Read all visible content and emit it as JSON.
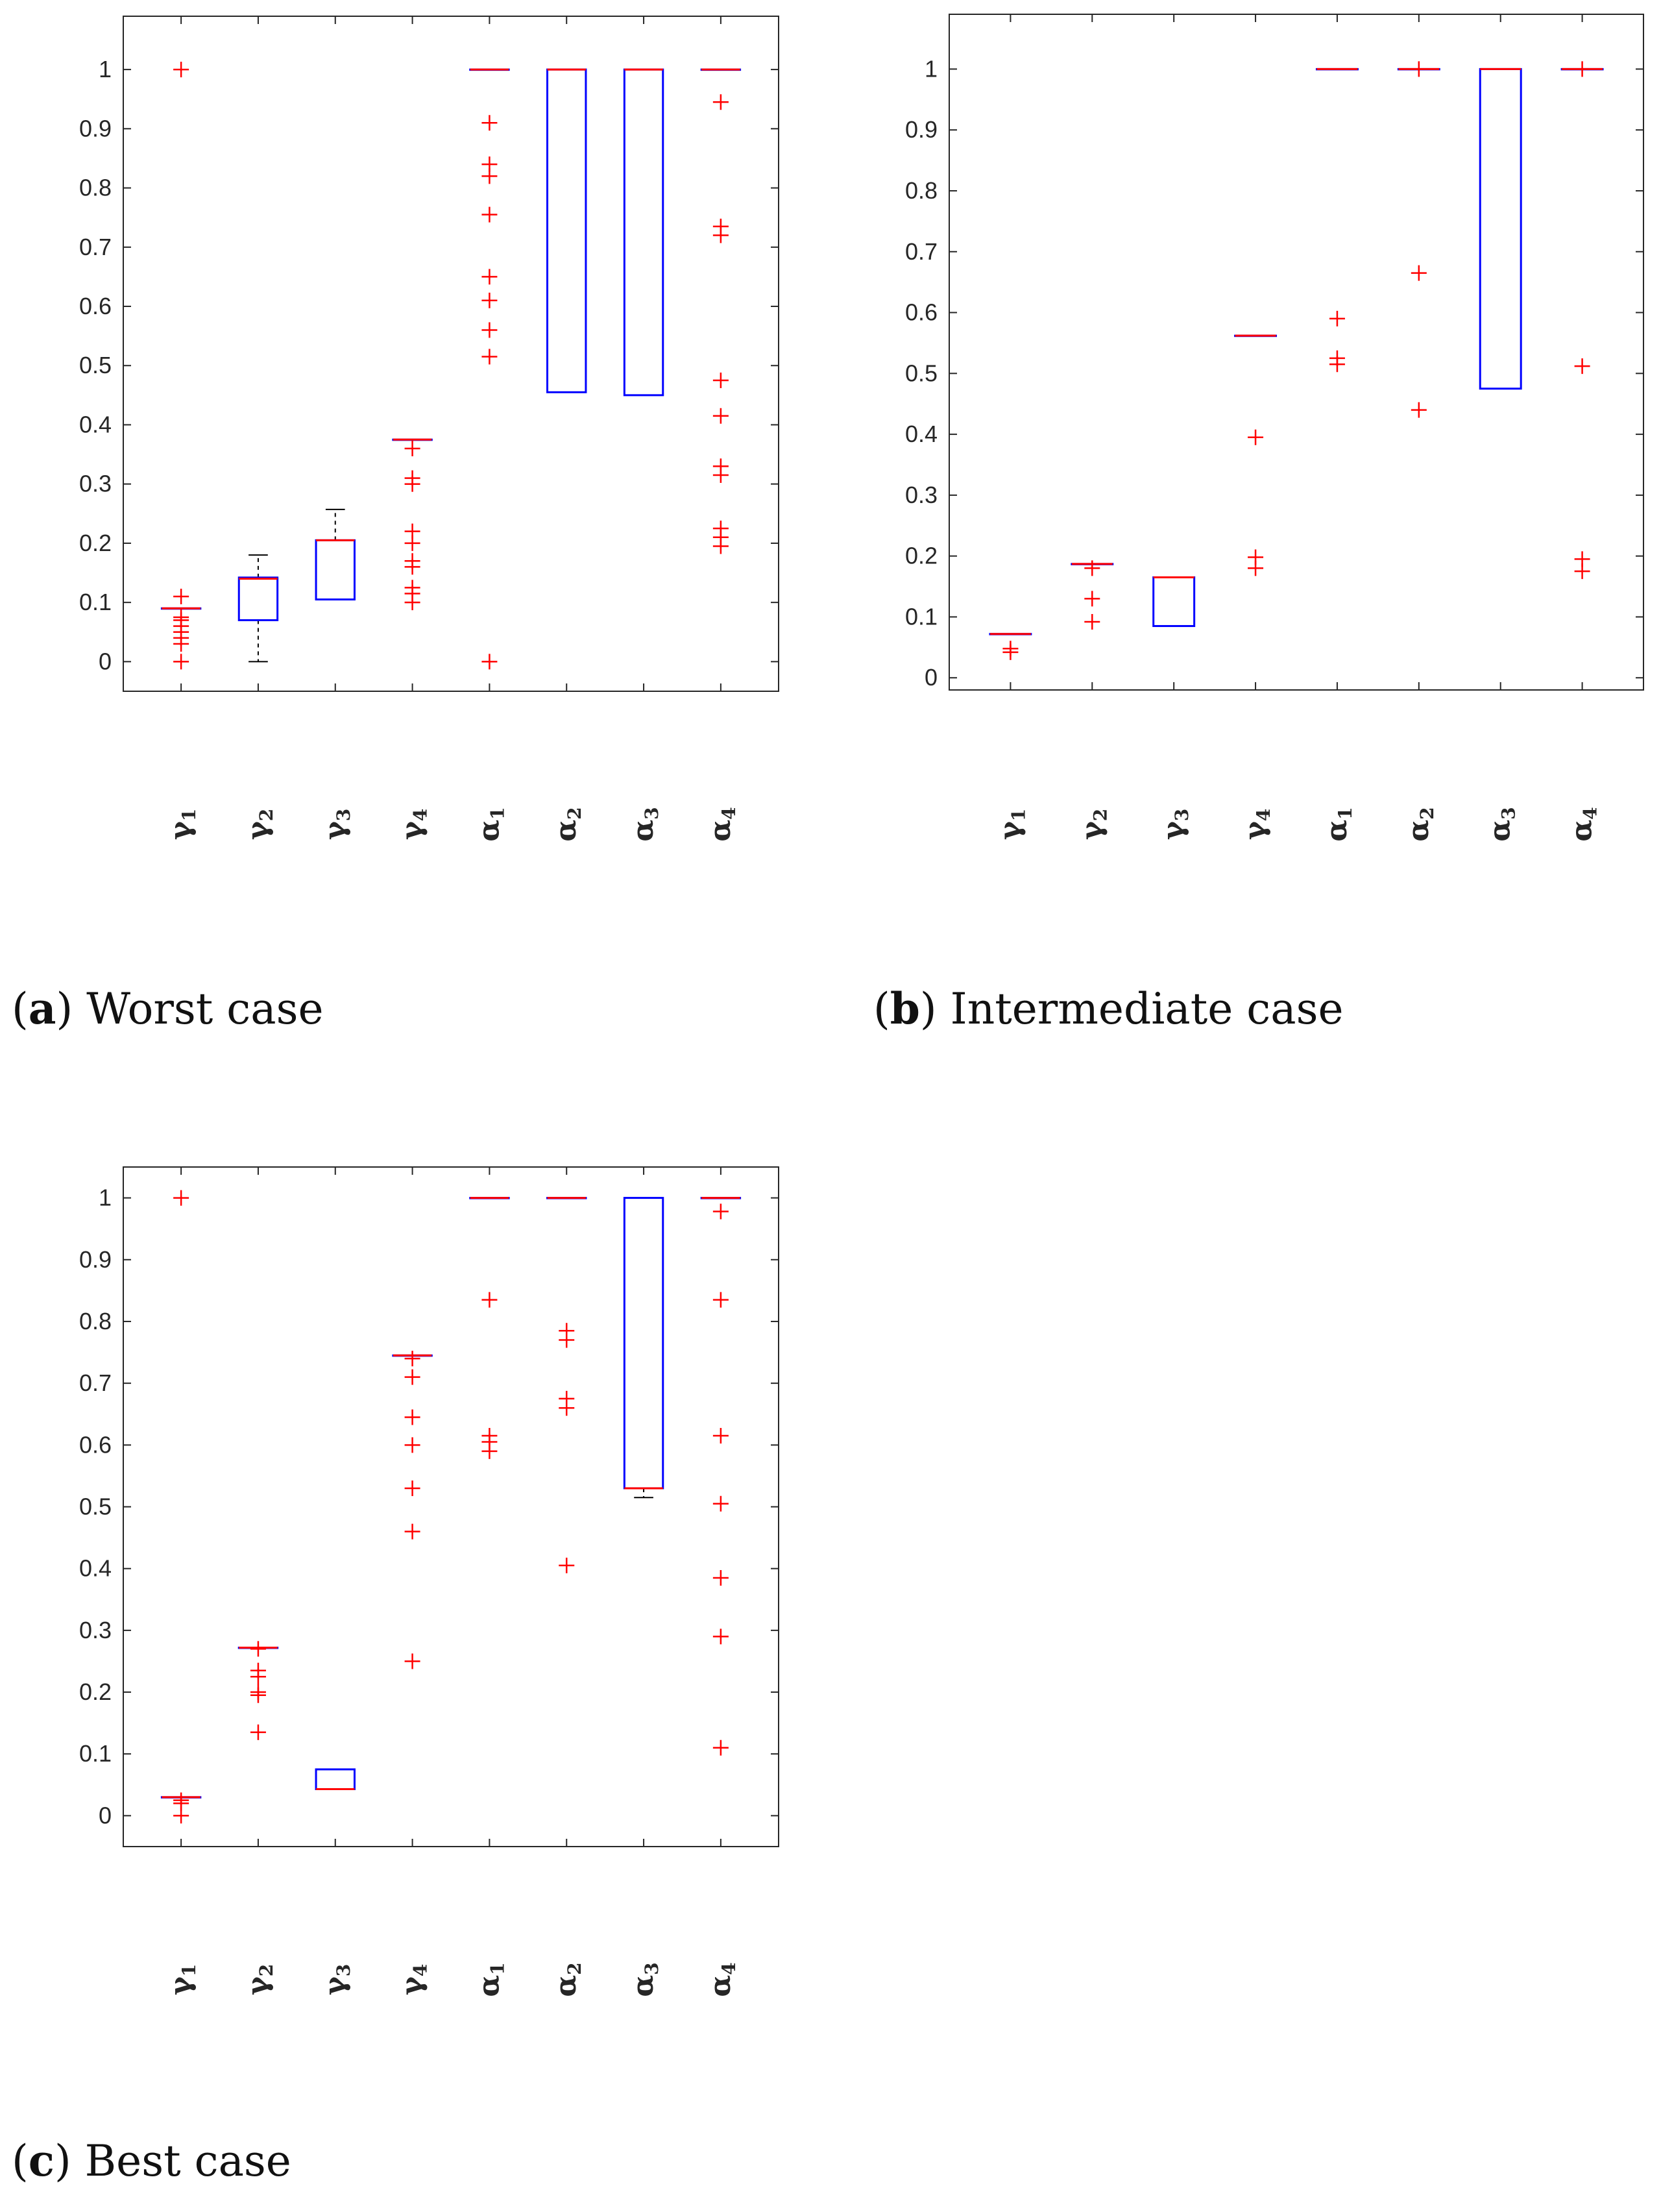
{
  "panels": [
    {
      "letter": "a",
      "caption": "Worst case",
      "chart_data": {
        "type": "box",
        "categories": [
          {
            "symbol": "γ",
            "sub": "1"
          },
          {
            "symbol": "γ",
            "sub": "2"
          },
          {
            "symbol": "γ",
            "sub": "3"
          },
          {
            "symbol": "γ",
            "sub": "4"
          },
          {
            "symbol": "α",
            "sub": "1"
          },
          {
            "symbol": "α",
            "sub": "2"
          },
          {
            "symbol": "α",
            "sub": "3"
          },
          {
            "symbol": "α",
            "sub": "4"
          }
        ],
        "ylim": [
          -0.05,
          1.09
        ],
        "yticks": [
          0,
          0.1,
          0.2,
          0.3,
          0.4,
          0.5,
          0.6,
          0.7,
          0.8,
          0.9,
          1
        ],
        "ytick_labels": [
          "0",
          "0.1",
          "0.2",
          "0.3",
          "0.4",
          "0.5",
          "0.6",
          "0.7",
          "0.8",
          "0.9",
          "1"
        ],
        "boxes": [
          {
            "q1": 0.09,
            "median": 0.09,
            "q3": 0.09,
            "whisker_low": 0.09,
            "whisker_high": 0.09,
            "outliers": [
              1.0,
              0.11,
              0.075,
              0.07,
              0.06,
              0.05,
              0.04,
              0.03,
              0.0
            ]
          },
          {
            "q1": 0.07,
            "median": 0.14,
            "q3": 0.142,
            "whisker_low": 0.0,
            "whisker_high": 0.18,
            "outliers": []
          },
          {
            "q1": 0.105,
            "median": 0.205,
            "q3": 0.205,
            "whisker_low": 0.105,
            "whisker_high": 0.257,
            "outliers": []
          },
          {
            "q1": 0.375,
            "median": 0.375,
            "q3": 0.375,
            "whisker_low": 0.375,
            "whisker_high": 0.375,
            "outliers": [
              0.36,
              0.31,
              0.3,
              0.22,
              0.2,
              0.17,
              0.16,
              0.125,
              0.115,
              0.1
            ]
          },
          {
            "q1": 1.0,
            "median": 1.0,
            "q3": 1.0,
            "whisker_low": 1.0,
            "whisker_high": 1.0,
            "outliers": [
              0.91,
              0.84,
              0.82,
              0.755,
              0.65,
              0.61,
              0.56,
              0.515,
              0.0
            ]
          },
          {
            "q1": 0.455,
            "median": 1.0,
            "q3": 1.0,
            "whisker_low": 0.455,
            "whisker_high": 1.0,
            "outliers": []
          },
          {
            "q1": 0.45,
            "median": 1.0,
            "q3": 1.0,
            "whisker_low": 0.45,
            "whisker_high": 1.0,
            "outliers": []
          },
          {
            "q1": 1.0,
            "median": 1.0,
            "q3": 1.0,
            "whisker_low": 1.0,
            "whisker_high": 1.0,
            "outliers": [
              0.945,
              0.735,
              0.72,
              0.475,
              0.415,
              0.33,
              0.315,
              0.225,
              0.21,
              0.195
            ]
          }
        ]
      }
    },
    {
      "letter": "b",
      "caption": "Intermediate case",
      "chart_data": {
        "type": "box",
        "categories": [
          {
            "symbol": "γ",
            "sub": "1"
          },
          {
            "symbol": "γ",
            "sub": "2"
          },
          {
            "symbol": "γ",
            "sub": "3"
          },
          {
            "symbol": "γ",
            "sub": "4"
          },
          {
            "symbol": "α",
            "sub": "1"
          },
          {
            "symbol": "α",
            "sub": "2"
          },
          {
            "symbol": "α",
            "sub": "3"
          },
          {
            "symbol": "α",
            "sub": "4"
          }
        ],
        "ylim": [
          -0.02,
          1.09
        ],
        "yticks": [
          0,
          0.1,
          0.2,
          0.3,
          0.4,
          0.5,
          0.6,
          0.7,
          0.8,
          0.9,
          1
        ],
        "ytick_labels": [
          "0",
          "0.1",
          "0.2",
          "0.3",
          "0.4",
          "0.5",
          "0.6",
          "0.7",
          "0.8",
          "0.9",
          "1"
        ],
        "boxes": [
          {
            "q1": 0.072,
            "median": 0.072,
            "q3": 0.072,
            "whisker_low": 0.072,
            "whisker_high": 0.072,
            "outliers": [
              0.048,
              0.042
            ]
          },
          {
            "q1": 0.187,
            "median": 0.187,
            "q3": 0.187,
            "whisker_low": 0.187,
            "whisker_high": 0.187,
            "outliers": [
              0.18,
              0.13,
              0.092
            ]
          },
          {
            "q1": 0.085,
            "median": 0.165,
            "q3": 0.165,
            "whisker_low": 0.085,
            "whisker_high": 0.165,
            "outliers": []
          },
          {
            "q1": 0.562,
            "median": 0.562,
            "q3": 0.562,
            "whisker_low": 0.562,
            "whisker_high": 0.562,
            "outliers": [
              0.395,
              0.198,
              0.18
            ]
          },
          {
            "q1": 1.0,
            "median": 1.0,
            "q3": 1.0,
            "whisker_low": 1.0,
            "whisker_high": 1.0,
            "outliers": [
              0.59,
              0.525,
              0.515
            ]
          },
          {
            "q1": 1.0,
            "median": 1.0,
            "q3": 1.0,
            "whisker_low": 1.0,
            "whisker_high": 1.0,
            "outliers": [
              1.0,
              0.665,
              0.44
            ]
          },
          {
            "q1": 0.475,
            "median": 1.0,
            "q3": 1.0,
            "whisker_low": 0.475,
            "whisker_high": 1.0,
            "outliers": []
          },
          {
            "q1": 1.0,
            "median": 1.0,
            "q3": 1.0,
            "whisker_low": 1.0,
            "whisker_high": 1.0,
            "outliers": [
              1.0,
              0.512,
              0.195,
              0.175
            ]
          }
        ]
      }
    },
    {
      "letter": "c",
      "caption": "Best case",
      "chart_data": {
        "type": "box",
        "categories": [
          {
            "symbol": "γ",
            "sub": "1"
          },
          {
            "symbol": "γ",
            "sub": "2"
          },
          {
            "symbol": "γ",
            "sub": "3"
          },
          {
            "symbol": "γ",
            "sub": "4"
          },
          {
            "symbol": "α",
            "sub": "1"
          },
          {
            "symbol": "α",
            "sub": "2"
          },
          {
            "symbol": "α",
            "sub": "3"
          },
          {
            "symbol": "α",
            "sub": "4"
          }
        ],
        "ylim": [
          -0.05,
          1.05
        ],
        "yticks": [
          0,
          0.1,
          0.2,
          0.3,
          0.4,
          0.5,
          0.6,
          0.7,
          0.8,
          0.9,
          1
        ],
        "ytick_labels": [
          "0",
          "0.1",
          "0.2",
          "0.3",
          "0.4",
          "0.5",
          "0.6",
          "0.7",
          "0.8",
          "0.9",
          "1"
        ],
        "boxes": [
          {
            "q1": 0.03,
            "median": 0.03,
            "q3": 0.03,
            "whisker_low": 0.03,
            "whisker_high": 0.03,
            "outliers": [
              1.0,
              0.025,
              0.02,
              0.0
            ]
          },
          {
            "q1": 0.272,
            "median": 0.272,
            "q3": 0.272,
            "whisker_low": 0.272,
            "whisker_high": 0.272,
            "outliers": [
              0.27,
              0.235,
              0.225,
              0.2,
              0.195,
              0.135
            ]
          },
          {
            "q1": 0.043,
            "median": 0.043,
            "q3": 0.075,
            "whisker_low": 0.043,
            "whisker_high": 0.075,
            "outliers": []
          },
          {
            "q1": 0.745,
            "median": 0.745,
            "q3": 0.745,
            "whisker_low": 0.745,
            "whisker_high": 0.745,
            "outliers": [
              0.74,
              0.71,
              0.645,
              0.6,
              0.53,
              0.46,
              0.25
            ]
          },
          {
            "q1": 1.0,
            "median": 1.0,
            "q3": 1.0,
            "whisker_low": 1.0,
            "whisker_high": 1.0,
            "outliers": [
              0.835,
              0.615,
              0.605,
              0.59
            ]
          },
          {
            "q1": 1.0,
            "median": 1.0,
            "q3": 1.0,
            "whisker_low": 1.0,
            "whisker_high": 1.0,
            "outliers": [
              0.785,
              0.77,
              0.675,
              0.66,
              0.405
            ]
          },
          {
            "q1": 0.53,
            "median": 0.53,
            "q3": 1.0,
            "whisker_low": 0.515,
            "whisker_high": 1.0,
            "outliers": []
          },
          {
            "q1": 1.0,
            "median": 1.0,
            "q3": 1.0,
            "whisker_low": 1.0,
            "whisker_high": 1.0,
            "outliers": [
              0.978,
              0.835,
              0.615,
              0.505,
              0.385,
              0.29,
              0.11
            ]
          }
        ]
      }
    }
  ],
  "colors": {
    "box": "#0000ff",
    "median": "#ff0000",
    "outlier": "#ff0000",
    "whisker": "#000000",
    "axes": "#262626"
  }
}
